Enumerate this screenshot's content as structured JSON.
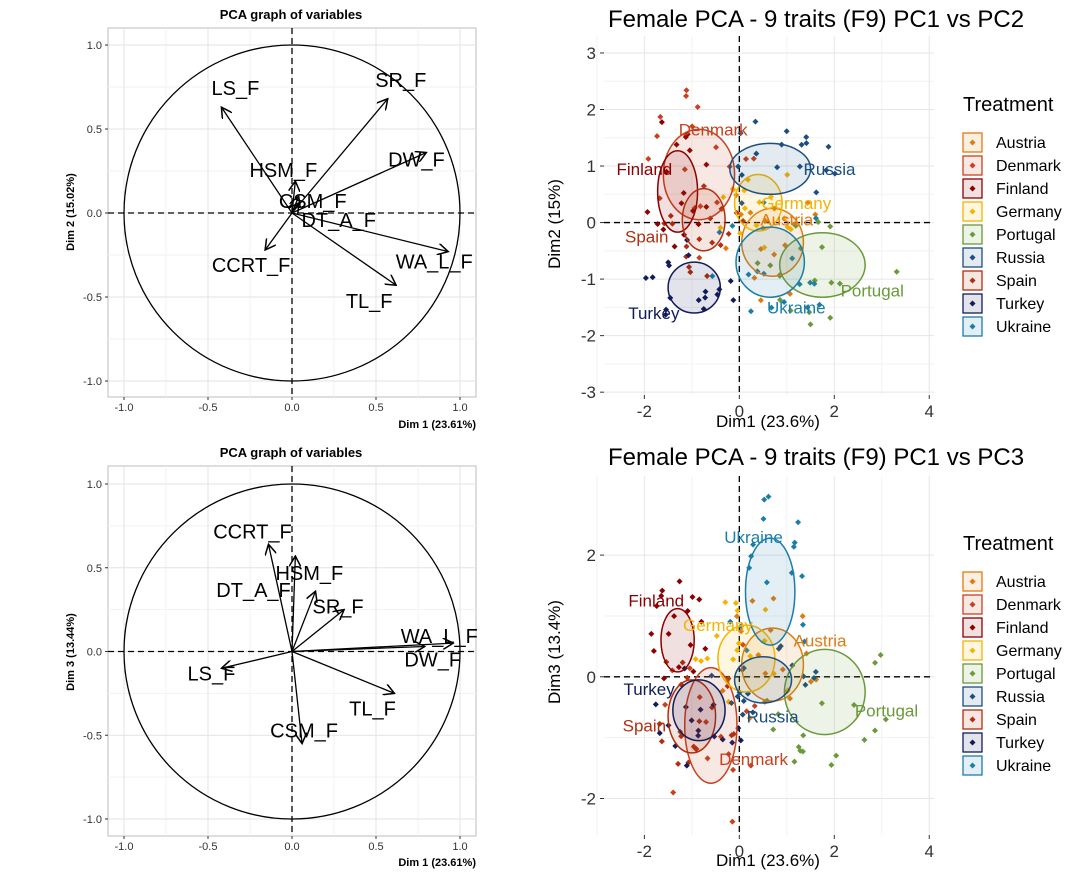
{
  "colors": {
    "Austria": "#E07B10",
    "Denmark": "#C8411E",
    "Finland": "#8B0000",
    "Germany": "#F4B400",
    "Portugal": "#6A9A3A",
    "Russia": "#1B4F80",
    "Spain": "#B22E0F",
    "Turkey": "#121C5A",
    "Ukraine": "#1A7FA8"
  },
  "chart_data": [
    {
      "type": "variable-correlation-circle",
      "title": "PCA graph of variables",
      "xlabel": "Dim 1 (23.61%)",
      "ylabel": "Dim 2 (15.02%)",
      "xlim": [
        -1.0,
        1.0
      ],
      "ylim": [
        -1.0,
        1.0
      ],
      "xticks": [
        "-1.0",
        "-0.5",
        "0.0",
        "0.5",
        "1.0"
      ],
      "yticks": [
        "-1.0",
        "-0.5",
        "0.0",
        "0.5",
        "1.0"
      ],
      "arrows": [
        {
          "name": "LS_F",
          "x": -0.42,
          "y": 0.63
        },
        {
          "name": "SR_F",
          "x": 0.57,
          "y": 0.68
        },
        {
          "name": "HSM_F",
          "x": 0.02,
          "y": 0.19
        },
        {
          "name": "DW_F",
          "x": 0.8,
          "y": 0.36
        },
        {
          "name": "CSM_F",
          "x": 0.04,
          "y": 0.1
        },
        {
          "name": "DT_A_F",
          "x": 0.04,
          "y": 0.06
        },
        {
          "name": "WA_L_F",
          "x": 0.93,
          "y": -0.23
        },
        {
          "name": "CCRT_F",
          "x": -0.16,
          "y": -0.22
        },
        {
          "name": "TL_F",
          "x": 0.62,
          "y": -0.43
        }
      ]
    },
    {
      "type": "scatter",
      "title": "Female PCA - 9 traits (F9) PC1 vs PC2",
      "xlabel": "Dim1 (23.6%)",
      "ylabel": "Dim2 (15%)",
      "xlim": [
        -2.85,
        4.1
      ],
      "ylim": [
        -3.05,
        3.3
      ],
      "xticks": [
        -2,
        0,
        2,
        4
      ],
      "yticks": [
        -3,
        -2,
        -1,
        0,
        1,
        2,
        3
      ],
      "legend_title": "Treatment",
      "legend_position": "right",
      "groups": [
        {
          "name": "Austria",
          "cx": 0.7,
          "cy": -0.35,
          "rx": 0.65,
          "ry": 0.6,
          "label_x": 1.0,
          "label_y": 0.05
        },
        {
          "name": "Denmark",
          "cx": -0.85,
          "cy": 0.85,
          "rx": 0.75,
          "ry": 0.8,
          "label_x": -0.55,
          "label_y": 1.65
        },
        {
          "name": "Finland",
          "cx": -1.3,
          "cy": 0.55,
          "rx": 0.42,
          "ry": 0.72,
          "label_x": -2.0,
          "label_y": 0.95
        },
        {
          "name": "Germany",
          "cx": 0.4,
          "cy": 0.35,
          "rx": 0.5,
          "ry": 0.5,
          "label_x": 1.2,
          "label_y": 0.35
        },
        {
          "name": "Portugal",
          "cx": 1.75,
          "cy": -0.75,
          "rx": 0.9,
          "ry": 0.57,
          "label_x": 2.8,
          "label_y": -1.2
        },
        {
          "name": "Russia",
          "cx": 0.65,
          "cy": 0.95,
          "rx": 0.85,
          "ry": 0.45,
          "label_x": 1.9,
          "label_y": 0.95
        },
        {
          "name": "Spain",
          "cx": -0.75,
          "cy": 0.05,
          "rx": 0.45,
          "ry": 0.55,
          "label_x": -1.95,
          "label_y": -0.25
        },
        {
          "name": "Turkey",
          "cx": -0.95,
          "cy": -1.15,
          "rx": 0.55,
          "ry": 0.45,
          "label_x": -1.8,
          "label_y": -1.6
        },
        {
          "name": "Ukraine",
          "cx": 0.65,
          "cy": -0.7,
          "rx": 0.72,
          "ry": 0.62,
          "label_x": 1.2,
          "label_y": -1.5
        }
      ]
    },
    {
      "type": "variable-correlation-circle",
      "title": "PCA graph of variables",
      "xlabel": "Dim 1 (23.61%)",
      "ylabel": "Dim 3 (13.44%)",
      "xlim": [
        -1.0,
        1.0
      ],
      "ylim": [
        -1.0,
        1.0
      ],
      "xticks": [
        "-1.0",
        "-0.5",
        "0.0",
        "0.5",
        "1.0"
      ],
      "yticks": [
        "-1.0",
        "-0.5",
        "0.0",
        "0.5",
        "1.0"
      ],
      "arrows": [
        {
          "name": "CCRT_F",
          "x": -0.14,
          "y": 0.64
        },
        {
          "name": "HSM_F",
          "x": 0.02,
          "y": 0.57
        },
        {
          "name": "DT_A_F",
          "x": 0.14,
          "y": 0.36
        },
        {
          "name": "SR_F",
          "x": 0.31,
          "y": 0.25
        },
        {
          "name": "WA_L_F",
          "x": 0.96,
          "y": 0.05
        },
        {
          "name": "DW_F",
          "x": 0.79,
          "y": 0.03
        },
        {
          "name": "LS_F",
          "x": -0.42,
          "y": -0.1
        },
        {
          "name": "TL_F",
          "x": 0.61,
          "y": -0.25
        },
        {
          "name": "CSM_F",
          "x": 0.06,
          "y": -0.55
        }
      ]
    },
    {
      "type": "scatter",
      "title": "Female PCA - 9 traits (F9) PC1 vs PC3",
      "xlabel": "Dim1 (23.6%)",
      "ylabel": "Dim3 (13.4%)",
      "xlim": [
        -2.85,
        4.1
      ],
      "ylim": [
        -2.6,
        3.3
      ],
      "xticks": [
        -2,
        0,
        2,
        4
      ],
      "yticks": [
        -2,
        0,
        2
      ],
      "legend_title": "Treatment",
      "legend_position": "right",
      "groups": [
        {
          "name": "Austria",
          "cx": 0.7,
          "cy": 0.2,
          "rx": 0.65,
          "ry": 0.6,
          "label_x": 1.7,
          "label_y": 0.6
        },
        {
          "name": "Denmark",
          "cx": -0.6,
          "cy": -0.8,
          "rx": 0.55,
          "ry": 0.95,
          "label_x": 0.3,
          "label_y": -1.35
        },
        {
          "name": "Finland",
          "cx": -1.3,
          "cy": 0.6,
          "rx": 0.35,
          "ry": 0.52,
          "label_x": -1.75,
          "label_y": 1.25
        },
        {
          "name": "Germany",
          "cx": 0.15,
          "cy": 0.3,
          "rx": 0.6,
          "ry": 0.55,
          "label_x": -0.45,
          "label_y": 0.85
        },
        {
          "name": "Portugal",
          "cx": 1.8,
          "cy": -0.25,
          "rx": 0.85,
          "ry": 0.7,
          "label_x": 3.1,
          "label_y": -0.55
        },
        {
          "name": "Russia",
          "cx": 0.5,
          "cy": -0.05,
          "rx": 0.6,
          "ry": 0.38,
          "label_x": 0.7,
          "label_y": -0.65
        },
        {
          "name": "Spain",
          "cx": -1.0,
          "cy": -0.65,
          "rx": 0.5,
          "ry": 0.6,
          "label_x": -2.0,
          "label_y": -0.8
        },
        {
          "name": "Turkey",
          "cx": -0.85,
          "cy": -0.55,
          "rx": 0.55,
          "ry": 0.5,
          "label_x": -1.9,
          "label_y": -0.2
        },
        {
          "name": "Ukraine",
          "cx": 0.65,
          "cy": 1.4,
          "rx": 0.52,
          "ry": 0.88,
          "label_x": 0.3,
          "label_y": 2.3
        }
      ]
    }
  ]
}
